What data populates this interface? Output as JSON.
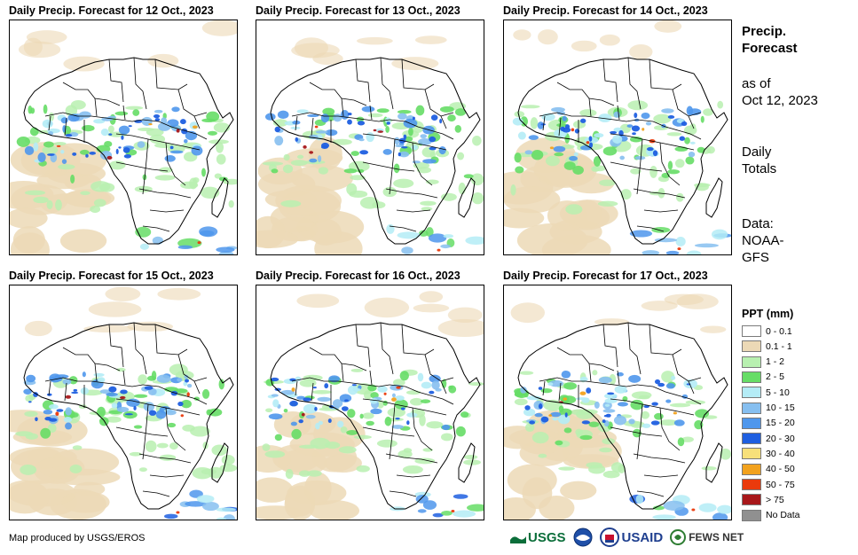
{
  "panels": [
    {
      "title": "Daily Precip. Forecast for 12 Oct., 2023"
    },
    {
      "title": "Daily Precip. Forecast for 13 Oct., 2023"
    },
    {
      "title": "Daily Precip. Forecast for 14 Oct., 2023"
    },
    {
      "title": "Daily Precip. Forecast for 15 Oct., 2023"
    },
    {
      "title": "Daily Precip. Forecast for 16 Oct., 2023"
    },
    {
      "title": "Daily Precip. Forecast for 17 Oct., 2023"
    }
  ],
  "sidebar": {
    "title": "Precip. Forecast",
    "as_of_label": "as of",
    "as_of_date": "Oct 12, 2023",
    "totals_label": "Daily Totals",
    "data_label": "Data:",
    "data_source": "NOAA-GFS"
  },
  "legend": {
    "title": "PPT (mm)",
    "items": [
      {
        "label": "0 - 0.1",
        "color": "#ffffff"
      },
      {
        "label": "0.1 - 1",
        "color": "#ecd9b6"
      },
      {
        "label": "1 - 2",
        "color": "#b8f0b0"
      },
      {
        "label": "2 - 5",
        "color": "#66dd66"
      },
      {
        "label": "5 - 10",
        "color": "#b4ecf6"
      },
      {
        "label": "10 - 15",
        "color": "#86bff0"
      },
      {
        "label": "15 - 20",
        "color": "#4f97ec"
      },
      {
        "label": "20 - 30",
        "color": "#1f5fe0"
      },
      {
        "label": "30 - 40",
        "color": "#f7e07a"
      },
      {
        "label": "40 - 50",
        "color": "#f2a21e"
      },
      {
        "label": "50 - 75",
        "color": "#ea3a0c"
      },
      {
        "label": "> 75",
        "color": "#a8171a"
      },
      {
        "label": "No Data",
        "color": "#909090"
      }
    ]
  },
  "footer": {
    "credit": "Map produced by USGS/EROS",
    "logos": [
      "USGS",
      "USAID",
      "FEWS NET"
    ]
  }
}
